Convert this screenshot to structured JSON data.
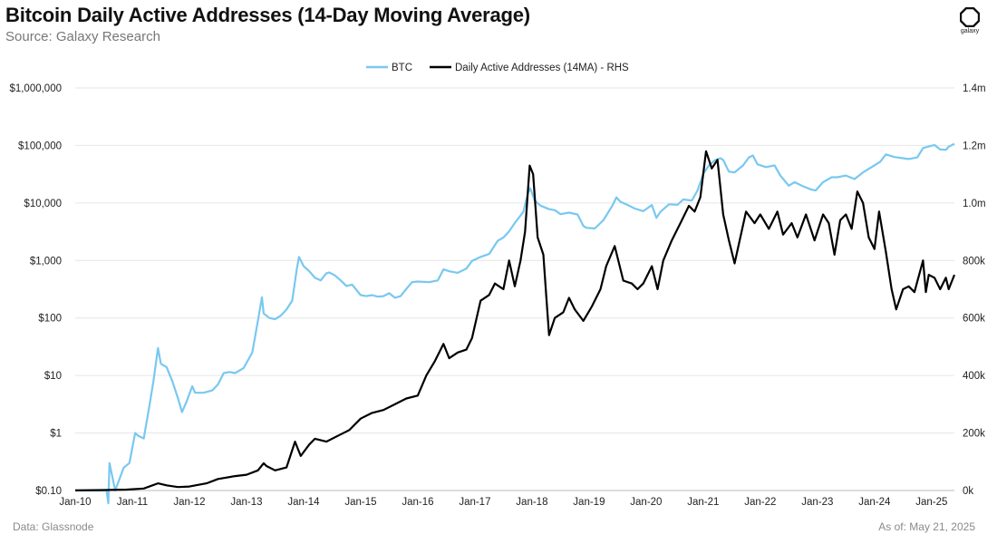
{
  "title": "Bitcoin Daily Active Addresses (14-Day Moving Average)",
  "subtitle": "Source: Galaxy Research",
  "brand": {
    "name": "galaxy",
    "icon": "galaxy-logo-icon"
  },
  "footer": {
    "data_source": "Data: Glassnode",
    "as_of": "As of: May 21, 2025"
  },
  "colors": {
    "btc": "#79c8f0",
    "addresses": "#000000",
    "grid": "#e6e6e6"
  },
  "chart_data": {
    "type": "line",
    "legend": [
      "BTC",
      "Daily Active Addresses (14MA) - RHS"
    ],
    "x_labels": [
      "Jan-10",
      "Jan-11",
      "Jan-12",
      "Jan-13",
      "Jan-14",
      "Jan-15",
      "Jan-16",
      "Jan-17",
      "Jan-18",
      "Jan-19",
      "Jan-20",
      "Jan-21",
      "Jan-22",
      "Jan-23",
      "Jan-24",
      "Jan-25"
    ],
    "x_range": [
      2010.0,
      2025.4
    ],
    "y_left": {
      "scale": "log",
      "range": [
        0.1,
        1000000
      ],
      "ticks": [
        0.1,
        1,
        10,
        100,
        1000,
        10000,
        100000,
        1000000
      ],
      "tick_labels": [
        "$0.10",
        "$1",
        "$10",
        "$100",
        "$1,000",
        "$10,000",
        "$100,000",
        "$1,000,000"
      ]
    },
    "y_right": {
      "scale": "linear",
      "range": [
        0,
        1400000
      ],
      "ticks": [
        0,
        200000,
        400000,
        600000,
        800000,
        1000000,
        1200000,
        1400000
      ],
      "tick_labels": [
        "0k",
        "200k",
        "400k",
        "600k",
        "800k",
        "1.0m",
        "1.2m",
        "1.4m"
      ]
    },
    "series": [
      {
        "name": "BTC",
        "axis": "left",
        "points": [
          [
            2010.0,
            0.1
          ],
          [
            2010.55,
            0.1
          ],
          [
            2010.58,
            0.06
          ],
          [
            2010.6,
            0.3
          ],
          [
            2010.7,
            0.1
          ],
          [
            2010.85,
            0.25
          ],
          [
            2010.95,
            0.3
          ],
          [
            2011.05,
            1.0
          ],
          [
            2011.1,
            0.9
          ],
          [
            2011.2,
            0.8
          ],
          [
            2011.3,
            3.0
          ],
          [
            2011.37,
            8.0
          ],
          [
            2011.45,
            30
          ],
          [
            2011.5,
            16
          ],
          [
            2011.6,
            14
          ],
          [
            2011.7,
            8
          ],
          [
            2011.8,
            4
          ],
          [
            2011.87,
            2.3
          ],
          [
            2011.95,
            3.5
          ],
          [
            2012.05,
            6.5
          ],
          [
            2012.1,
            5
          ],
          [
            2012.25,
            5
          ],
          [
            2012.4,
            5.5
          ],
          [
            2012.5,
            7
          ],
          [
            2012.6,
            11
          ],
          [
            2012.7,
            11.5
          ],
          [
            2012.8,
            11
          ],
          [
            2012.95,
            13.5
          ],
          [
            2013.1,
            25
          ],
          [
            2013.2,
            90
          ],
          [
            2013.27,
            230
          ],
          [
            2013.3,
            120
          ],
          [
            2013.4,
            100
          ],
          [
            2013.5,
            95
          ],
          [
            2013.6,
            110
          ],
          [
            2013.7,
            140
          ],
          [
            2013.8,
            200
          ],
          [
            2013.88,
            700
          ],
          [
            2013.92,
            1150
          ],
          [
            2014.0,
            800
          ],
          [
            2014.1,
            650
          ],
          [
            2014.2,
            500
          ],
          [
            2014.3,
            450
          ],
          [
            2014.4,
            600
          ],
          [
            2014.45,
            620
          ],
          [
            2014.55,
            550
          ],
          [
            2014.65,
            450
          ],
          [
            2014.75,
            360
          ],
          [
            2014.85,
            380
          ],
          [
            2015.0,
            250
          ],
          [
            2015.1,
            240
          ],
          [
            2015.2,
            250
          ],
          [
            2015.3,
            235
          ],
          [
            2015.4,
            240
          ],
          [
            2015.5,
            270
          ],
          [
            2015.6,
            225
          ],
          [
            2015.7,
            240
          ],
          [
            2015.8,
            320
          ],
          [
            2015.9,
            420
          ],
          [
            2016.0,
            430
          ],
          [
            2016.2,
            420
          ],
          [
            2016.35,
            450
          ],
          [
            2016.45,
            700
          ],
          [
            2016.55,
            650
          ],
          [
            2016.7,
            610
          ],
          [
            2016.85,
            720
          ],
          [
            2016.95,
            980
          ],
          [
            2017.1,
            1150
          ],
          [
            2017.25,
            1300
          ],
          [
            2017.4,
            2200
          ],
          [
            2017.5,
            2500
          ],
          [
            2017.6,
            3200
          ],
          [
            2017.7,
            4500
          ],
          [
            2017.85,
            7000
          ],
          [
            2017.93,
            15000
          ],
          [
            2017.97,
            18000
          ],
          [
            2018.05,
            11000
          ],
          [
            2018.15,
            9000
          ],
          [
            2018.3,
            7800
          ],
          [
            2018.4,
            7500
          ],
          [
            2018.5,
            6400
          ],
          [
            2018.65,
            6800
          ],
          [
            2018.8,
            6300
          ],
          [
            2018.9,
            4000
          ],
          [
            2018.95,
            3700
          ],
          [
            2019.1,
            3600
          ],
          [
            2019.25,
            5000
          ],
          [
            2019.4,
            8700
          ],
          [
            2019.48,
            12500
          ],
          [
            2019.55,
            10500
          ],
          [
            2019.7,
            9000
          ],
          [
            2019.8,
            8000
          ],
          [
            2019.95,
            7200
          ],
          [
            2020.1,
            9200
          ],
          [
            2020.18,
            5500
          ],
          [
            2020.25,
            7000
          ],
          [
            2020.4,
            9500
          ],
          [
            2020.55,
            9300
          ],
          [
            2020.65,
            11500
          ],
          [
            2020.8,
            11000
          ],
          [
            2020.9,
            16500
          ],
          [
            2021.0,
            32000
          ],
          [
            2021.1,
            45000
          ],
          [
            2021.2,
            55000
          ],
          [
            2021.3,
            60000
          ],
          [
            2021.35,
            56000
          ],
          [
            2021.45,
            35000
          ],
          [
            2021.55,
            34000
          ],
          [
            2021.7,
            45000
          ],
          [
            2021.8,
            62000
          ],
          [
            2021.87,
            67000
          ],
          [
            2021.95,
            47000
          ],
          [
            2022.1,
            42000
          ],
          [
            2022.25,
            45000
          ],
          [
            2022.35,
            30000
          ],
          [
            2022.5,
            20000
          ],
          [
            2022.6,
            23000
          ],
          [
            2022.75,
            19500
          ],
          [
            2022.9,
            17000
          ],
          [
            2022.97,
            16500
          ],
          [
            2023.1,
            23000
          ],
          [
            2023.25,
            28000
          ],
          [
            2023.35,
            28000
          ],
          [
            2023.5,
            30000
          ],
          [
            2023.65,
            26000
          ],
          [
            2023.8,
            34000
          ],
          [
            2023.95,
            42000
          ],
          [
            2024.1,
            52000
          ],
          [
            2024.2,
            70000
          ],
          [
            2024.35,
            63000
          ],
          [
            2024.5,
            60000
          ],
          [
            2024.6,
            58000
          ],
          [
            2024.75,
            62000
          ],
          [
            2024.85,
            90000
          ],
          [
            2024.95,
            96000
          ],
          [
            2025.05,
            102000
          ],
          [
            2025.15,
            85000
          ],
          [
            2025.25,
            84000
          ],
          [
            2025.3,
            95000
          ],
          [
            2025.4,
            107000
          ]
        ]
      },
      {
        "name": "Daily Active Addresses (14MA) - RHS",
        "axis": "right",
        "points": [
          [
            2010.0,
            500
          ],
          [
            2010.5,
            1500
          ],
          [
            2010.9,
            3000
          ],
          [
            2011.2,
            7000
          ],
          [
            2011.45,
            25000
          ],
          [
            2011.6,
            18000
          ],
          [
            2011.8,
            12000
          ],
          [
            2012.0,
            14000
          ],
          [
            2012.3,
            25000
          ],
          [
            2012.5,
            40000
          ],
          [
            2012.8,
            50000
          ],
          [
            2013.0,
            55000
          ],
          [
            2013.2,
            70000
          ],
          [
            2013.3,
            95000
          ],
          [
            2013.35,
            85000
          ],
          [
            2013.5,
            70000
          ],
          [
            2013.7,
            80000
          ],
          [
            2013.85,
            170000
          ],
          [
            2013.95,
            120000
          ],
          [
            2014.1,
            160000
          ],
          [
            2014.2,
            180000
          ],
          [
            2014.4,
            170000
          ],
          [
            2014.6,
            190000
          ],
          [
            2014.8,
            210000
          ],
          [
            2015.0,
            250000
          ],
          [
            2015.2,
            270000
          ],
          [
            2015.4,
            280000
          ],
          [
            2015.6,
            300000
          ],
          [
            2015.8,
            320000
          ],
          [
            2016.0,
            330000
          ],
          [
            2016.15,
            400000
          ],
          [
            2016.3,
            450000
          ],
          [
            2016.45,
            510000
          ],
          [
            2016.55,
            460000
          ],
          [
            2016.7,
            480000
          ],
          [
            2016.85,
            490000
          ],
          [
            2016.95,
            530000
          ],
          [
            2017.1,
            660000
          ],
          [
            2017.25,
            680000
          ],
          [
            2017.35,
            720000
          ],
          [
            2017.5,
            700000
          ],
          [
            2017.6,
            800000
          ],
          [
            2017.7,
            710000
          ],
          [
            2017.8,
            800000
          ],
          [
            2017.88,
            900000
          ],
          [
            2017.96,
            1130000
          ],
          [
            2018.02,
            1100000
          ],
          [
            2018.1,
            880000
          ],
          [
            2018.2,
            820000
          ],
          [
            2018.25,
            680000
          ],
          [
            2018.3,
            540000
          ],
          [
            2018.4,
            600000
          ],
          [
            2018.55,
            620000
          ],
          [
            2018.65,
            670000
          ],
          [
            2018.75,
            630000
          ],
          [
            2018.9,
            590000
          ],
          [
            2019.05,
            640000
          ],
          [
            2019.2,
            700000
          ],
          [
            2019.3,
            780000
          ],
          [
            2019.45,
            850000
          ],
          [
            2019.6,
            730000
          ],
          [
            2019.75,
            720000
          ],
          [
            2019.85,
            700000
          ],
          [
            2019.95,
            720000
          ],
          [
            2020.1,
            780000
          ],
          [
            2020.2,
            700000
          ],
          [
            2020.3,
            800000
          ],
          [
            2020.45,
            870000
          ],
          [
            2020.6,
            930000
          ],
          [
            2020.75,
            990000
          ],
          [
            2020.85,
            970000
          ],
          [
            2020.95,
            1020000
          ],
          [
            2021.05,
            1180000
          ],
          [
            2021.15,
            1120000
          ],
          [
            2021.25,
            1150000
          ],
          [
            2021.35,
            960000
          ],
          [
            2021.45,
            870000
          ],
          [
            2021.55,
            790000
          ],
          [
            2021.65,
            880000
          ],
          [
            2021.75,
            970000
          ],
          [
            2021.9,
            930000
          ],
          [
            2022.0,
            960000
          ],
          [
            2022.15,
            910000
          ],
          [
            2022.3,
            970000
          ],
          [
            2022.4,
            890000
          ],
          [
            2022.55,
            930000
          ],
          [
            2022.65,
            880000
          ],
          [
            2022.8,
            960000
          ],
          [
            2022.95,
            870000
          ],
          [
            2023.1,
            960000
          ],
          [
            2023.2,
            930000
          ],
          [
            2023.3,
            820000
          ],
          [
            2023.4,
            940000
          ],
          [
            2023.5,
            960000
          ],
          [
            2023.6,
            910000
          ],
          [
            2023.7,
            1040000
          ],
          [
            2023.8,
            1000000
          ],
          [
            2023.9,
            880000
          ],
          [
            2024.0,
            840000
          ],
          [
            2024.08,
            970000
          ],
          [
            2024.2,
            830000
          ],
          [
            2024.3,
            700000
          ],
          [
            2024.38,
            630000
          ],
          [
            2024.5,
            700000
          ],
          [
            2024.6,
            710000
          ],
          [
            2024.7,
            690000
          ],
          [
            2024.85,
            800000
          ],
          [
            2024.9,
            690000
          ],
          [
            2024.95,
            750000
          ],
          [
            2025.05,
            740000
          ],
          [
            2025.15,
            700000
          ],
          [
            2025.25,
            740000
          ],
          [
            2025.3,
            700000
          ],
          [
            2025.4,
            750000
          ]
        ]
      }
    ]
  }
}
